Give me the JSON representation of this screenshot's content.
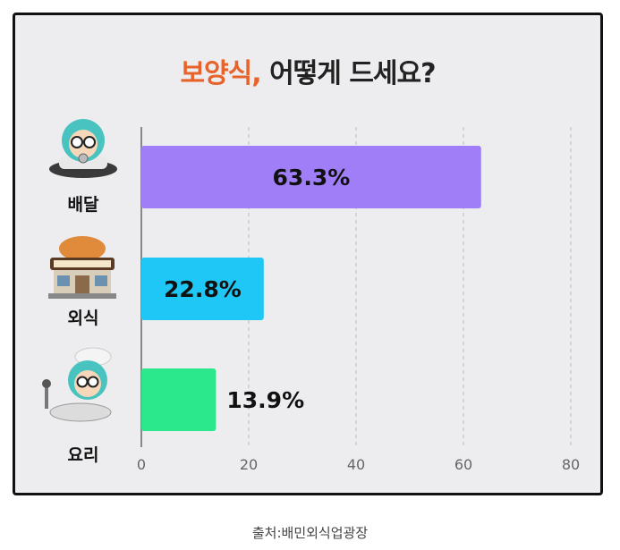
{
  "title_accent": "보양식,",
  "title_rest": " 어떻게 드세요?",
  "source": "출처:배민외식업광장",
  "colors": {
    "accent": "#e8632b",
    "bar_delivery": "#a07ef7",
    "bar_dineout": "#1ec7f5",
    "bar_cooking": "#2be88c"
  },
  "chart_data": {
    "type": "bar",
    "orientation": "horizontal",
    "title": "보양식, 어떻게 드세요?",
    "categories": [
      "배달",
      "외식",
      "요리"
    ],
    "values": [
      63.3,
      22.8,
      13.9
    ],
    "value_labels": [
      "63.3%",
      "22.8%",
      "13.9%"
    ],
    "xlim": [
      0,
      80
    ],
    "xticks": [
      0,
      20,
      40,
      60,
      80
    ],
    "grid": "vertical dashed",
    "icons": [
      "delivery-rider-icon",
      "restaurant-icon",
      "chef-icon"
    ]
  }
}
